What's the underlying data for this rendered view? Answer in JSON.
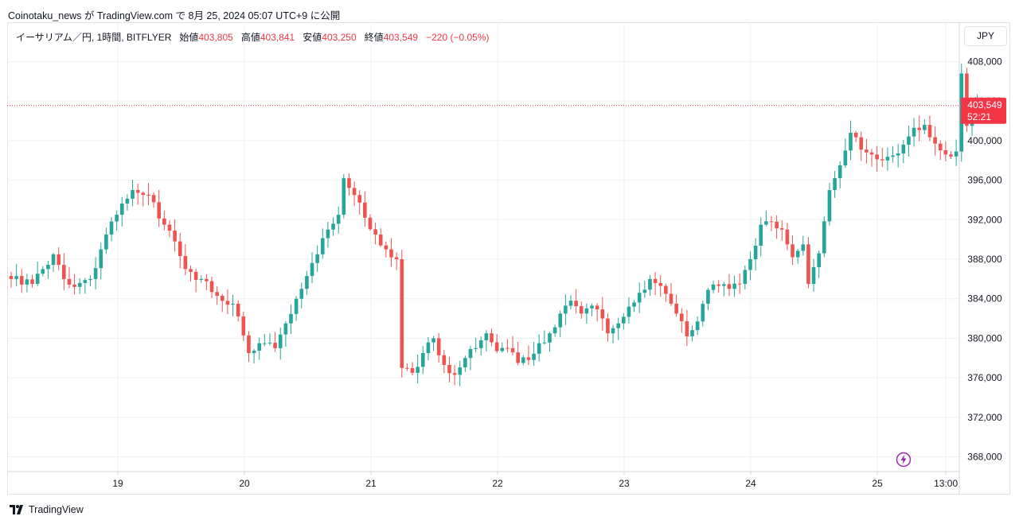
{
  "publish_line": "Coinotaku_news が TradingView.com で 8月 25, 2024 05:07 UTC+9 に公開",
  "legend": {
    "symbol": "イーサリアム／円, 1時間, BITFLYER",
    "open_label": "始値",
    "open": "403,805",
    "high_label": "高値",
    "high": "403,841",
    "low_label": "安値",
    "low": "403,250",
    "close_label": "終値",
    "close": "403,549",
    "change": "−220 (−0.05%)"
  },
  "currency_button": "JPY",
  "price_tag": {
    "price": "403,549",
    "countdown": "52:21"
  },
  "footer": {
    "brand": "TradingView"
  },
  "icons": {
    "flash": "flash-icon",
    "logo": "tradingview-logo-icon"
  },
  "colors": {
    "up": "#26a69a",
    "down": "#ef5350",
    "grid": "#eef1f4",
    "tag": "#f23645"
  },
  "chart_data": {
    "type": "candlestick",
    "title": "イーサリアム／円, 1時間, BITFLYER",
    "ylim": [
      366000,
      410000
    ],
    "y_ticks": [
      368000,
      372000,
      376000,
      380000,
      384000,
      388000,
      392000,
      396000,
      400000,
      404000,
      408000
    ],
    "y_tick_labels": [
      "368,000",
      "372,000",
      "376,000",
      "380,000",
      "384,000",
      "388,000",
      "392,000",
      "396,000",
      "400,000",
      "404,000",
      "408,000"
    ],
    "x_ticks": [
      {
        "label": "19",
        "day": 19.0
      },
      {
        "label": "20",
        "day": 20.0
      },
      {
        "label": "21",
        "day": 21.0
      },
      {
        "label": "22",
        "day": 22.0
      },
      {
        "label": "23",
        "day": 23.0
      },
      {
        "label": "24",
        "day": 24.0
      },
      {
        "label": "25",
        "day": 25.0
      },
      {
        "label": "13:00",
        "day": 25.5417
      }
    ],
    "last_price": 403549,
    "grid": true,
    "anchor_points": [
      [
        0,
        386000
      ],
      [
        4,
        385500
      ],
      [
        6,
        387000
      ],
      [
        8,
        388500
      ],
      [
        10,
        386000
      ],
      [
        12,
        385200
      ],
      [
        15,
        386000
      ],
      [
        18,
        390500
      ],
      [
        20,
        392500
      ],
      [
        23,
        395000
      ],
      [
        26,
        394500
      ],
      [
        29,
        391500
      ],
      [
        31,
        389800
      ],
      [
        33,
        387000
      ],
      [
        36,
        386000
      ],
      [
        39,
        384300
      ],
      [
        42,
        383500
      ],
      [
        45,
        378500
      ],
      [
        47,
        379500
      ],
      [
        50,
        379000
      ],
      [
        52,
        381500
      ],
      [
        54,
        384000
      ],
      [
        56,
        386300
      ],
      [
        58,
        388500
      ],
      [
        60,
        391000
      ],
      [
        62,
        392500
      ],
      [
        63,
        396200
      ],
      [
        65,
        394500
      ],
      [
        67,
        392200
      ],
      [
        69,
        390500
      ],
      [
        71,
        389000
      ],
      [
        73,
        388000
      ],
      [
        74,
        377000
      ],
      [
        76,
        376500
      ],
      [
        78,
        378500
      ],
      [
        80,
        380000
      ],
      [
        82,
        377300
      ],
      [
        84,
        376300
      ],
      [
        86,
        378000
      ],
      [
        88,
        379000
      ],
      [
        90,
        380500
      ],
      [
        92,
        378700
      ],
      [
        94,
        379000
      ],
      [
        96,
        377500
      ],
      [
        98,
        377800
      ],
      [
        100,
        379500
      ],
      [
        102,
        380500
      ],
      [
        104,
        382500
      ],
      [
        106,
        383800
      ],
      [
        108,
        382500
      ],
      [
        110,
        383300
      ],
      [
        112,
        382000
      ],
      [
        113,
        380500
      ],
      [
        115,
        381500
      ],
      [
        117,
        383200
      ],
      [
        119,
        384600
      ],
      [
        121,
        386000
      ],
      [
        123,
        385300
      ],
      [
        124,
        384500
      ],
      [
        126,
        382500
      ],
      [
        128,
        380200
      ],
      [
        130,
        381700
      ],
      [
        132,
        384900
      ],
      [
        134,
        385300
      ],
      [
        136,
        385000
      ],
      [
        138,
        385500
      ],
      [
        140,
        388000
      ],
      [
        142,
        391500
      ],
      [
        144,
        391800
      ],
      [
        146,
        391000
      ],
      [
        147,
        389500
      ],
      [
        148,
        388200
      ],
      [
        150,
        389500
      ],
      [
        151,
        385500
      ],
      [
        153,
        388600
      ],
      [
        155,
        395000
      ],
      [
        157,
        397500
      ],
      [
        158,
        399000
      ],
      [
        159,
        400800
      ],
      [
        161,
        399100
      ],
      [
        163,
        398600
      ],
      [
        165,
        398000
      ],
      [
        167,
        398500
      ],
      [
        169,
        399600
      ],
      [
        171,
        401300
      ],
      [
        173,
        401600
      ],
      [
        175,
        399700
      ],
      [
        177,
        398600
      ],
      [
        178,
        398400
      ],
      [
        179,
        398900
      ],
      [
        180,
        406800
      ],
      [
        181,
        401500
      ],
      [
        182,
        402500
      ],
      [
        183,
        403800
      ],
      [
        184,
        403500
      ]
    ]
  }
}
